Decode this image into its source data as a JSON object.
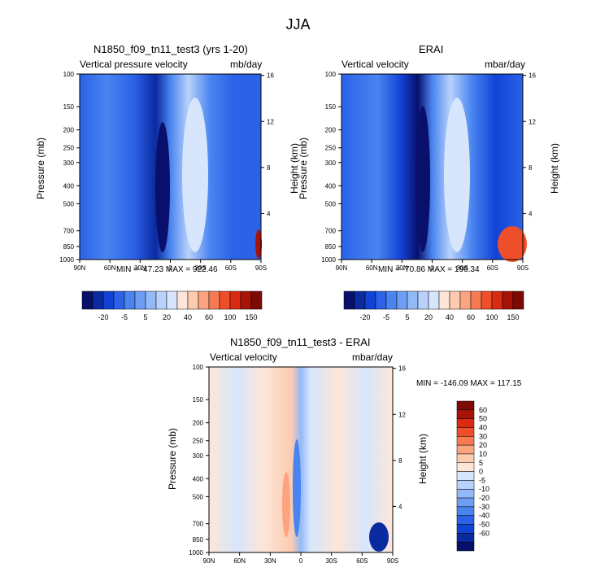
{
  "title": "JJA",
  "colors": {
    "scale_a": [
      "#08106b",
      "#0a2aa0",
      "#1142d6",
      "#2b62e8",
      "#4a84f0",
      "#6e9ef4",
      "#92b9f8",
      "#b8d2fb",
      "#d7e6fd",
      "#fde6d8",
      "#fccbb0",
      "#fba47f",
      "#f87a52",
      "#ef4e2a",
      "#d92b14",
      "#a81308",
      "#7d0a04"
    ],
    "scale_b": [
      "#08106b",
      "#0a2aa0",
      "#1142d6",
      "#2b62e8",
      "#4a84f0",
      "#6e9ef4",
      "#92b9f8",
      "#b8d2fb",
      "#d7e6fd",
      "#fde6d8",
      "#fccbb0",
      "#fba47f",
      "#f87a52",
      "#ef4e2a",
      "#d92b14",
      "#a81308",
      "#7d0a04"
    ]
  },
  "panels": {
    "model": {
      "title": "N1850_f09_tn11_test3 (yrs 1-20)",
      "left_label": "Vertical pressure velocity",
      "right_label": "mb/day",
      "minmax": "MIN = -47.23   MAX = 922.46"
    },
    "obs": {
      "title": "ERAI",
      "left_label": "Vertical velocity",
      "right_label": "mbar/day",
      "minmax": "MIN = -70.86   MAX = 196.34"
    },
    "diff": {
      "title": "N1850_f09_tn11_test3 - ERAI",
      "left_label": "Vertical velocity",
      "right_label": "mbar/day",
      "minmax": "MIN = -146.09   MAX = 117.15"
    }
  },
  "axes": {
    "ylabel": "Pressure (mb)",
    "y2label": "Height (km)",
    "pressure_ticks": [
      "100",
      "150",
      "200",
      "250",
      "300",
      "400",
      "500",
      "700",
      "850",
      "1000"
    ],
    "height_ticks": [
      "16",
      "12",
      "8",
      "4"
    ],
    "lat_ticks": [
      "90N",
      "60N",
      "30N",
      "0",
      "30S",
      "60S",
      "90S"
    ]
  },
  "colorbars": {
    "abs_labels": [
      "-20",
      "-5",
      "5",
      "20",
      "40",
      "60",
      "100",
      "150"
    ],
    "diff_labels": [
      "60",
      "50",
      "40",
      "30",
      "20",
      "10",
      "5",
      "0",
      "-5",
      "-10",
      "-20",
      "-30",
      "-40",
      "-50",
      "-60"
    ]
  },
  "chart_data": [
    {
      "type": "heatmap",
      "title": "N1850_f09_tn11_test3 (yrs 1-20)",
      "variable": "Vertical pressure velocity",
      "units": "mb/day",
      "xlabel": "",
      "ylabel": "Pressure (mb)",
      "y2label": "Height (km)",
      "x_ticks": [
        "90N",
        "60N",
        "30N",
        "0",
        "30S",
        "60S",
        "90S"
      ],
      "y_ticks": [
        100,
        150,
        200,
        250,
        300,
        400,
        500,
        700,
        850,
        1000
      ],
      "y2_ticks": [
        16,
        12,
        8,
        4
      ],
      "levels": [
        -20,
        -5,
        5,
        20,
        40,
        60,
        100,
        150
      ],
      "min": -47.23,
      "max": 922.46
    },
    {
      "type": "heatmap",
      "title": "ERAI",
      "variable": "Vertical velocity",
      "units": "mbar/day",
      "xlabel": "",
      "ylabel": "Pressure (mb)",
      "y2label": "Height (km)",
      "x_ticks": [
        "90N",
        "60N",
        "30N",
        "0",
        "30S",
        "60S",
        "90S"
      ],
      "y_ticks": [
        100,
        150,
        200,
        250,
        300,
        400,
        500,
        700,
        850,
        1000
      ],
      "y2_ticks": [
        16,
        12,
        8,
        4
      ],
      "levels": [
        -20,
        -5,
        5,
        20,
        40,
        60,
        100,
        150
      ],
      "min": -70.86,
      "max": 196.34
    },
    {
      "type": "heatmap",
      "title": "N1850_f09_tn11_test3 - ERAI",
      "variable": "Vertical velocity",
      "units": "mbar/day",
      "xlabel": "",
      "ylabel": "Pressure (mb)",
      "y2label": "Height (km)",
      "x_ticks": [
        "90N",
        "60N",
        "30N",
        "0",
        "30S",
        "60S",
        "90S"
      ],
      "y_ticks": [
        100,
        150,
        200,
        250,
        300,
        400,
        500,
        700,
        850,
        1000
      ],
      "y2_ticks": [
        16,
        12,
        8,
        4
      ],
      "levels": [
        60,
        50,
        40,
        30,
        20,
        10,
        5,
        0,
        -5,
        -10,
        -20,
        -30,
        -40,
        -50,
        -60
      ],
      "min": -146.09,
      "max": 117.15
    }
  ]
}
